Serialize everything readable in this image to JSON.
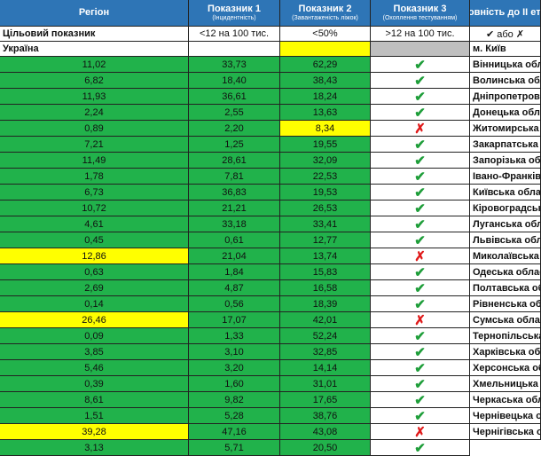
{
  "header": {
    "columns": [
      {
        "title": "Регіон"
      },
      {
        "title": "Показник 1",
        "subtitle": "(Інцидентність)"
      },
      {
        "title": "Показник 2",
        "subtitle": "(Завантаженість ліжок)"
      },
      {
        "title": "Показник 3",
        "subtitle": "(Охоплення тестуванням)"
      },
      {
        "title": "Готовність до ІІ етапу"
      }
    ],
    "color": "#2e75b6"
  },
  "target": {
    "label": "Цільовий показник",
    "values": [
      "<12 на 100 тис.",
      "<50%",
      ">12 на 100 тис.",
      "✔ або ✗"
    ]
  },
  "national": {
    "region": "Україна",
    "cell_colors": [
      "#ffffff",
      "#ffffff",
      "#ffff00",
      "#bfbfbf"
    ]
  },
  "status_colors": {
    "✔": "#1f9e3a",
    "✗": "#e01b1b"
  },
  "rows": [
    {
      "region": "м. Київ",
      "values": [
        "11,02",
        "33,73",
        "62,29"
      ],
      "cell_colors": [
        "#21b24b",
        "#21b24b",
        "#21b24b"
      ],
      "status": "✔"
    },
    {
      "region": "Вінницька область",
      "values": [
        "6,82",
        "18,40",
        "38,43"
      ],
      "cell_colors": [
        "#21b24b",
        "#21b24b",
        "#21b24b"
      ],
      "status": "✔"
    },
    {
      "region": "Волинська область",
      "values": [
        "11,93",
        "36,61",
        "18,24"
      ],
      "cell_colors": [
        "#21b24b",
        "#21b24b",
        "#21b24b"
      ],
      "status": "✔"
    },
    {
      "region": "Дніпропетровська область",
      "values": [
        "2,24",
        "2,55",
        "13,63"
      ],
      "cell_colors": [
        "#21b24b",
        "#21b24b",
        "#21b24b"
      ],
      "status": "✔"
    },
    {
      "region": "Донецька область",
      "values": [
        "0,89",
        "2,20",
        "8,34"
      ],
      "cell_colors": [
        "#21b24b",
        "#21b24b",
        "#ffff00"
      ],
      "status": "✗"
    },
    {
      "region": "Житомирська область",
      "values": [
        "7,21",
        "1,25",
        "19,55"
      ],
      "cell_colors": [
        "#21b24b",
        "#21b24b",
        "#21b24b"
      ],
      "status": "✔"
    },
    {
      "region": "Закарпатська область",
      "values": [
        "11,49",
        "28,61",
        "32,09"
      ],
      "cell_colors": [
        "#21b24b",
        "#21b24b",
        "#21b24b"
      ],
      "status": "✔"
    },
    {
      "region": "Запорізька область",
      "values": [
        "1,78",
        "7,81",
        "22,53"
      ],
      "cell_colors": [
        "#21b24b",
        "#21b24b",
        "#21b24b"
      ],
      "status": "✔"
    },
    {
      "region": "Івано-Франківська область",
      "values": [
        "6,73",
        "36,83",
        "19,53"
      ],
      "cell_colors": [
        "#21b24b",
        "#21b24b",
        "#21b24b"
      ],
      "status": "✔"
    },
    {
      "region": "Київська область",
      "values": [
        "10,72",
        "21,21",
        "26,53"
      ],
      "cell_colors": [
        "#21b24b",
        "#21b24b",
        "#21b24b"
      ],
      "status": "✔"
    },
    {
      "region": "Кіровоградська область",
      "values": [
        "4,61",
        "33,18",
        "33,41"
      ],
      "cell_colors": [
        "#21b24b",
        "#21b24b",
        "#21b24b"
      ],
      "status": "✔"
    },
    {
      "region": "Луганська область",
      "values": [
        "0,45",
        "0,61",
        "12,77"
      ],
      "cell_colors": [
        "#21b24b",
        "#21b24b",
        "#21b24b"
      ],
      "status": "✔"
    },
    {
      "region": "Львівська область",
      "values": [
        "12,86",
        "21,04",
        "13,74"
      ],
      "cell_colors": [
        "#ffff00",
        "#21b24b",
        "#21b24b"
      ],
      "status": "✗"
    },
    {
      "region": "Миколаївська область",
      "values": [
        "0,63",
        "1,84",
        "15,83"
      ],
      "cell_colors": [
        "#21b24b",
        "#21b24b",
        "#21b24b"
      ],
      "status": "✔"
    },
    {
      "region": "Одеська область",
      "values": [
        "2,69",
        "4,87",
        "16,58"
      ],
      "cell_colors": [
        "#21b24b",
        "#21b24b",
        "#21b24b"
      ],
      "status": "✔"
    },
    {
      "region": "Полтавська область",
      "values": [
        "0,14",
        "0,56",
        "18,39"
      ],
      "cell_colors": [
        "#21b24b",
        "#21b24b",
        "#21b24b"
      ],
      "status": "✔"
    },
    {
      "region": "Рівненська область",
      "values": [
        "26,46",
        "17,07",
        "42,01"
      ],
      "cell_colors": [
        "#ffff00",
        "#21b24b",
        "#21b24b"
      ],
      "status": "✗"
    },
    {
      "region": "Сумська область",
      "values": [
        "0,09",
        "1,33",
        "52,24"
      ],
      "cell_colors": [
        "#21b24b",
        "#21b24b",
        "#21b24b"
      ],
      "status": "✔"
    },
    {
      "region": "Тернопільська область",
      "values": [
        "3,85",
        "3,10",
        "32,85"
      ],
      "cell_colors": [
        "#21b24b",
        "#21b24b",
        "#21b24b"
      ],
      "status": "✔"
    },
    {
      "region": "Харківська область",
      "values": [
        "5,46",
        "3,20",
        "14,14"
      ],
      "cell_colors": [
        "#21b24b",
        "#21b24b",
        "#21b24b"
      ],
      "status": "✔"
    },
    {
      "region": "Херсонська область",
      "values": [
        "0,39",
        "1,60",
        "31,01"
      ],
      "cell_colors": [
        "#21b24b",
        "#21b24b",
        "#21b24b"
      ],
      "status": "✔"
    },
    {
      "region": "Хмельницька область",
      "values": [
        "8,61",
        "9,82",
        "17,65"
      ],
      "cell_colors": [
        "#21b24b",
        "#21b24b",
        "#21b24b"
      ],
      "status": "✔"
    },
    {
      "region": "Черкаська область",
      "values": [
        "1,51",
        "5,28",
        "38,76"
      ],
      "cell_colors": [
        "#21b24b",
        "#21b24b",
        "#21b24b"
      ],
      "status": "✔"
    },
    {
      "region": "Чернівецька область",
      "values": [
        "39,28",
        "47,16",
        "43,08"
      ],
      "cell_colors": [
        "#ffff00",
        "#21b24b",
        "#21b24b"
      ],
      "status": "✗"
    },
    {
      "region": "Чернігівська область",
      "values": [
        "3,13",
        "5,71",
        "20,50"
      ],
      "cell_colors": [
        "#21b24b",
        "#21b24b",
        "#21b24b"
      ],
      "status": "✔"
    }
  ]
}
